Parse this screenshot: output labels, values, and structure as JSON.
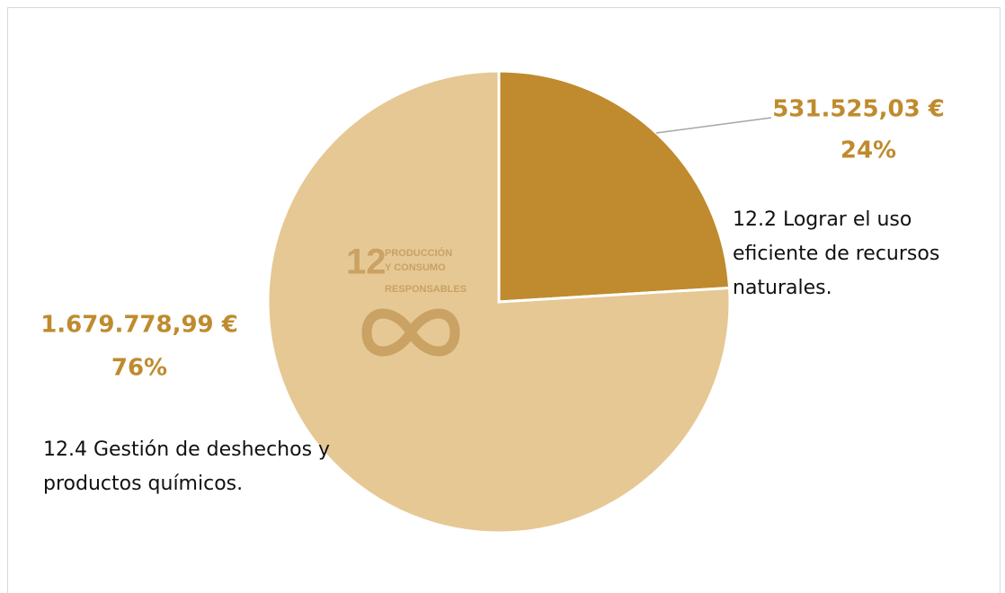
{
  "chart_data": {
    "type": "pie",
    "categories": [
      "12.2 Lograr el uso eficiente de recursos naturales.",
      "12.4 Gestión de deshechos y productos químicos."
    ],
    "values": [
      531525.03,
      1679778.99
    ],
    "value_labels": [
      "531.525,03 €",
      "1.679.778,99 €"
    ],
    "percents": [
      24,
      76
    ],
    "percent_labels": [
      "24%",
      "76%"
    ],
    "colors": [
      "#bf8b2e",
      "#e6c894"
    ],
    "logo": {
      "number": "12",
      "lines": [
        "PRODUCCIÓN",
        "Y CONSUMO",
        "RESPONSABLES"
      ]
    }
  }
}
